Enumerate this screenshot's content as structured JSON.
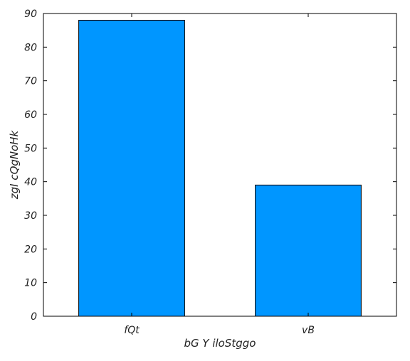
{
  "chart_data": {
    "type": "bar",
    "categories": [
      "fQt",
      "vB"
    ],
    "values": [
      88,
      39
    ],
    "xlabel": "bG Y iloStggo",
    "ylabel": "zgI cQgNoHk",
    "ylim": [
      0,
      90
    ],
    "yticks": [
      0,
      10,
      20,
      30,
      40,
      50,
      60,
      70,
      80,
      90
    ],
    "grid": false,
    "bar_color": "#0096ff",
    "bar_edge_color": "#000000"
  }
}
